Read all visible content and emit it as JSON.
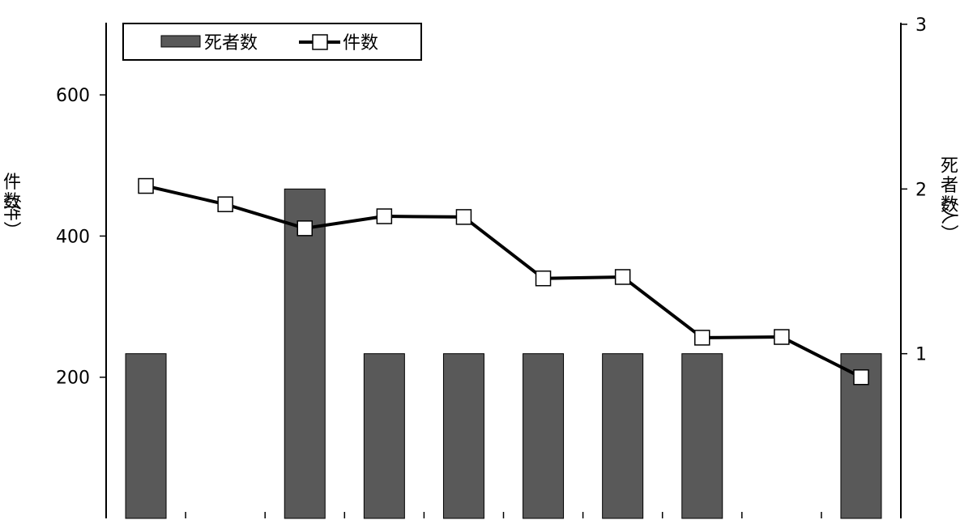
{
  "chart_data": {
    "type": "bar",
    "categories": [
      "",
      "",
      "",
      "",
      "",
      "",
      "",
      "",
      "",
      ""
    ],
    "series": [
      {
        "name": "死者数",
        "type": "bar",
        "axis": "right",
        "color": "#595959",
        "values": [
          1,
          0,
          2,
          1,
          1,
          1,
          1,
          1,
          0,
          1
        ]
      },
      {
        "name": "件数",
        "type": "line",
        "axis": "left",
        "color": "#000000",
        "marker": "open-square",
        "values": [
          471,
          445,
          411,
          428,
          427,
          340,
          342,
          256,
          257,
          200
        ]
      }
    ],
    "left_axis": {
      "label_chars": [
        "件",
        "数",
        "（件）"
      ],
      "ticks": [
        200,
        400,
        600
      ],
      "range": [
        0,
        700
      ]
    },
    "right_axis": {
      "label_chars": [
        "死",
        "者",
        "数",
        "（人）"
      ],
      "ticks": [
        1,
        2,
        3
      ],
      "range": [
        0,
        3
      ]
    },
    "legend": {
      "position": "top-left",
      "entries": [
        "死者数",
        "件数"
      ]
    },
    "grid": false
  }
}
